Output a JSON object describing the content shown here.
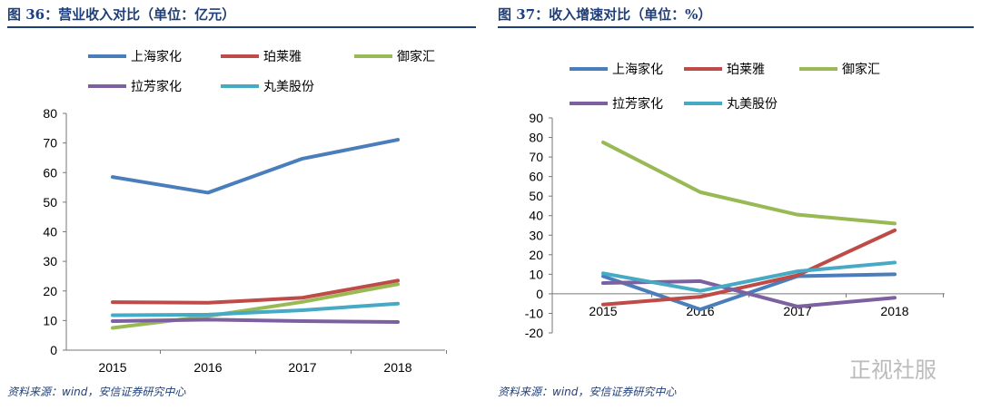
{
  "chart_data": [
    {
      "type": "line",
      "title": "图 36：营业收入对比（单位：亿元）",
      "categories": [
        "2015",
        "2016",
        "2017",
        "2018"
      ],
      "ylim": [
        0,
        80
      ],
      "yticks": [
        0,
        10,
        20,
        30,
        40,
        50,
        60,
        70,
        80
      ],
      "legend": "top",
      "series": [
        {
          "name": "上海家化",
          "color": "#4a7ebb",
          "values": [
            58.5,
            53.2,
            64.7,
            71.1
          ]
        },
        {
          "name": "珀莱雅",
          "color": "#be4b48",
          "values": [
            16.2,
            16.0,
            17.7,
            23.5
          ]
        },
        {
          "name": "御家汇",
          "color": "#98b954",
          "values": [
            7.5,
            11.5,
            16.3,
            22.3
          ]
        },
        {
          "name": "拉芳家化",
          "color": "#7d60a0",
          "values": [
            9.8,
            10.3,
            9.8,
            9.5
          ]
        },
        {
          "name": "丸美股份",
          "color": "#46aac5",
          "values": [
            11.8,
            12.0,
            13.5,
            15.7
          ]
        }
      ]
    },
    {
      "type": "line",
      "title": "图 37：收入增速对比（单位：%）",
      "categories": [
        "2015",
        "2016",
        "2017",
        "2018"
      ],
      "ylim": [
        -20,
        90
      ],
      "yticks": [
        -20,
        -10,
        0,
        10,
        20,
        30,
        40,
        50,
        60,
        70,
        80,
        90
      ],
      "legend": "top",
      "series": [
        {
          "name": "上海家化",
          "color": "#4a7ebb",
          "values": [
            9,
            -8,
            9,
            10
          ]
        },
        {
          "name": "珀莱雅",
          "color": "#be4b48",
          "values": [
            -5.5,
            -1.5,
            9.5,
            32.5
          ]
        },
        {
          "name": "御家汇",
          "color": "#98b954",
          "values": [
            77.5,
            52,
            40.5,
            36
          ]
        },
        {
          "name": "拉芳家化",
          "color": "#7d60a0",
          "values": [
            5.5,
            6.5,
            -6.5,
            -2
          ]
        },
        {
          "name": "丸美股份",
          "color": "#46aac5",
          "values": [
            10.5,
            1.5,
            11.5,
            16
          ]
        }
      ]
    }
  ],
  "sources": [
    "资料来源：wind，安信证券研究中心",
    "资料来源：wind，安信证券研究中心"
  ],
  "watermark": "正视社服"
}
